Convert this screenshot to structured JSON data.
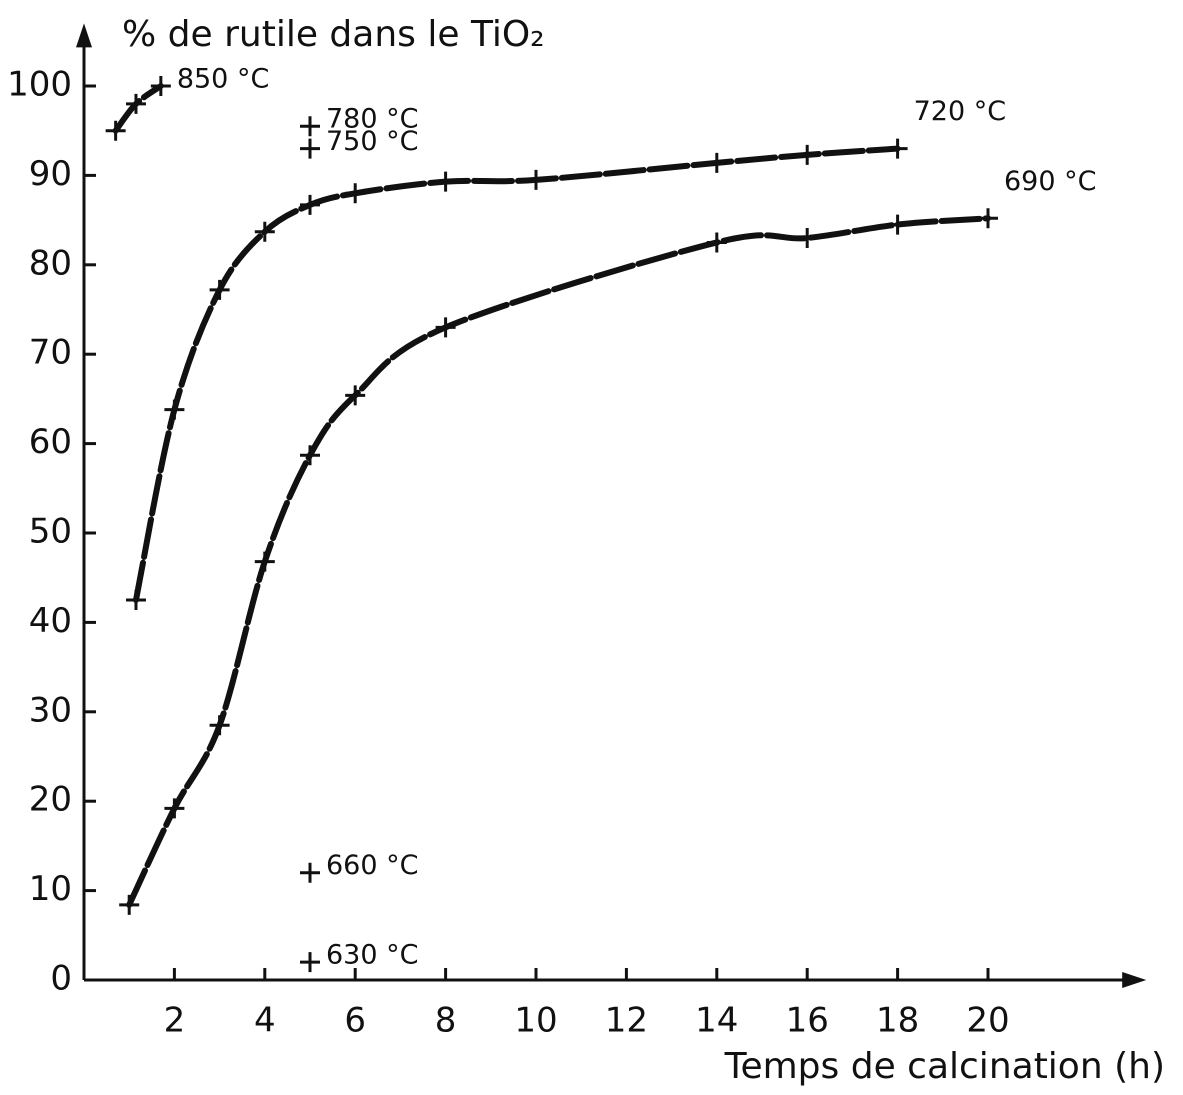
{
  "chart_data": {
    "type": "line",
    "title": "% de rutile dans le TiO₂",
    "x_label": "Temps de calcination (h)",
    "xlim": [
      0,
      23.5
    ],
    "ylim": [
      0,
      107
    ],
    "xticks": [
      2,
      4,
      6,
      8,
      10,
      12,
      14,
      16,
      18,
      20
    ],
    "yticks": [
      0,
      10,
      20,
      30,
      40,
      50,
      60,
      70,
      80,
      90,
      100
    ],
    "series": [
      {
        "name": "850 °C",
        "color": "#111111",
        "style": "line",
        "x": [
          0.7,
          1.15,
          1.7
        ],
        "values": [
          95,
          98,
          100
        ]
      },
      {
        "name": "720 °C",
        "color": "#111111",
        "style": "line",
        "x": [
          1.15,
          2,
          3,
          4,
          5,
          6,
          8,
          10,
          14,
          16,
          18
        ],
        "values": [
          42.5,
          63.8,
          77.2,
          83.7,
          86.7,
          88,
          89.3,
          89.5,
          91.4,
          92.3,
          93
        ]
      },
      {
        "name": "690 °C",
        "color": "#111111",
        "style": "line",
        "x": [
          1,
          2,
          3,
          4,
          5,
          6,
          8,
          14,
          16,
          18,
          20
        ],
        "values": [
          8.4,
          19.2,
          28.5,
          46.8,
          58.7,
          65.4,
          73,
          82.5,
          83,
          84.5,
          85.2
        ]
      },
      {
        "name": "780 °C",
        "color": "#111111",
        "style": "point",
        "x": [
          5
        ],
        "values": [
          95.5
        ]
      },
      {
        "name": "750 °C",
        "color": "#111111",
        "style": "point",
        "x": [
          5
        ],
        "values": [
          93
        ]
      },
      {
        "name": "660 °C",
        "color": "#111111",
        "style": "point",
        "x": [
          5
        ],
        "values": [
          12
        ]
      },
      {
        "name": "630 °C",
        "color": "#111111",
        "style": "point",
        "x": [
          5
        ],
        "values": [
          2
        ]
      }
    ]
  }
}
